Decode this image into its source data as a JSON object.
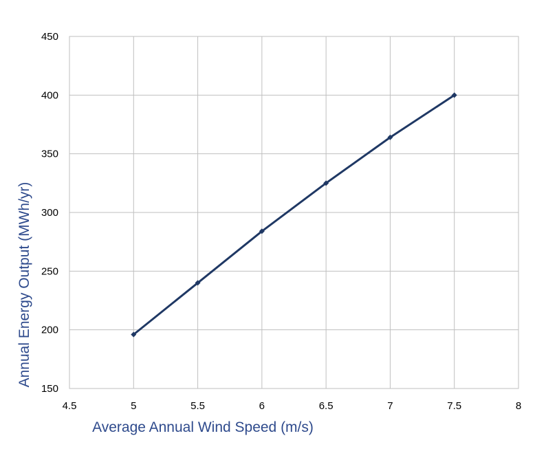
{
  "chart_data": {
    "type": "line",
    "title": "",
    "xlabel": "Average Annual Wind Speed (m/s)",
    "ylabel": "Annual Energy Output (MWh/yr)",
    "xlim": [
      4.5,
      8
    ],
    "ylim": [
      150,
      450
    ],
    "xticks": [
      4.5,
      5,
      5.5,
      6,
      6.5,
      7,
      7.5,
      8
    ],
    "yticks": [
      150,
      200,
      250,
      300,
      350,
      400,
      450
    ],
    "xtick_labels": [
      "4.5",
      "5",
      "5.5",
      "6",
      "6.5",
      "7",
      "7.5",
      "8"
    ],
    "ytick_labels": [
      "150",
      "200",
      "250",
      "300",
      "350",
      "400",
      "450"
    ],
    "grid": true,
    "legend": "none",
    "series": [
      {
        "x": [
          5,
          5.5,
          6,
          6.5,
          7,
          7.5
        ],
        "y": [
          196,
          240,
          284,
          325,
          364,
          400
        ],
        "color": "#1f3864",
        "marker": "diamond"
      }
    ],
    "colors": {
      "axis_label": "#2e4a8c",
      "grid": "#bfbfbf",
      "tick_text": "#000000"
    }
  }
}
